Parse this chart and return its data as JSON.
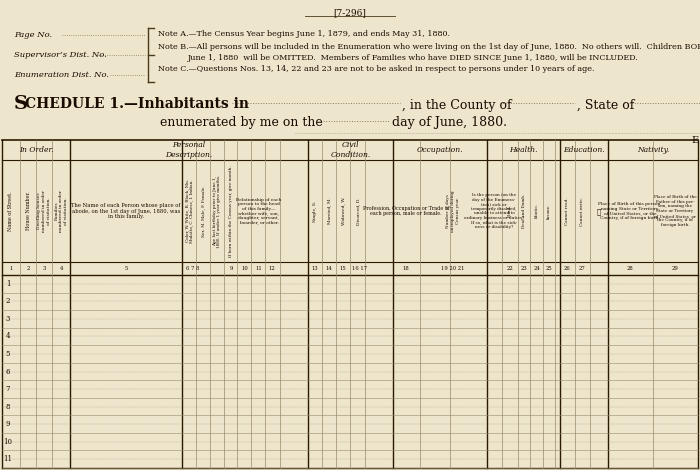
{
  "bg_color": "#ede5cc",
  "line_color": "#4a3a1a",
  "text_color": "#1a0a00",
  "page_width": 7.0,
  "page_height": 4.7,
  "header_ref": "[7-296]",
  "page_no_label": "Page No.",
  "supervisor_label": "Supervisor’s Dist. No.",
  "enum_label": "Enumeration Dist. No.",
  "note_a": "Note A.—The Census Year begins June 1, 1879, and ends May 31, 1880.",
  "note_b": "Note B.—All persons will be included in the Enumeration who were living on the 1st day of June, 1880.  No others will.  Children BORN SINCE",
  "note_b2": "June 1, 1880  will be OMITTED.  Members of Families who have DIED SINCE June 1, 1880, will be INCLUDED.",
  "note_c": "Note C.—Questions Nos. 13, 14, 22 and 23 are not to be asked in respect to persons under 10 years of age.",
  "num_data_rows": 11,
  "dotted_line_color": "#8a7a5a",
  "grid_color": "#9a8a6a",
  "thick_line_color": "#2a1a00"
}
